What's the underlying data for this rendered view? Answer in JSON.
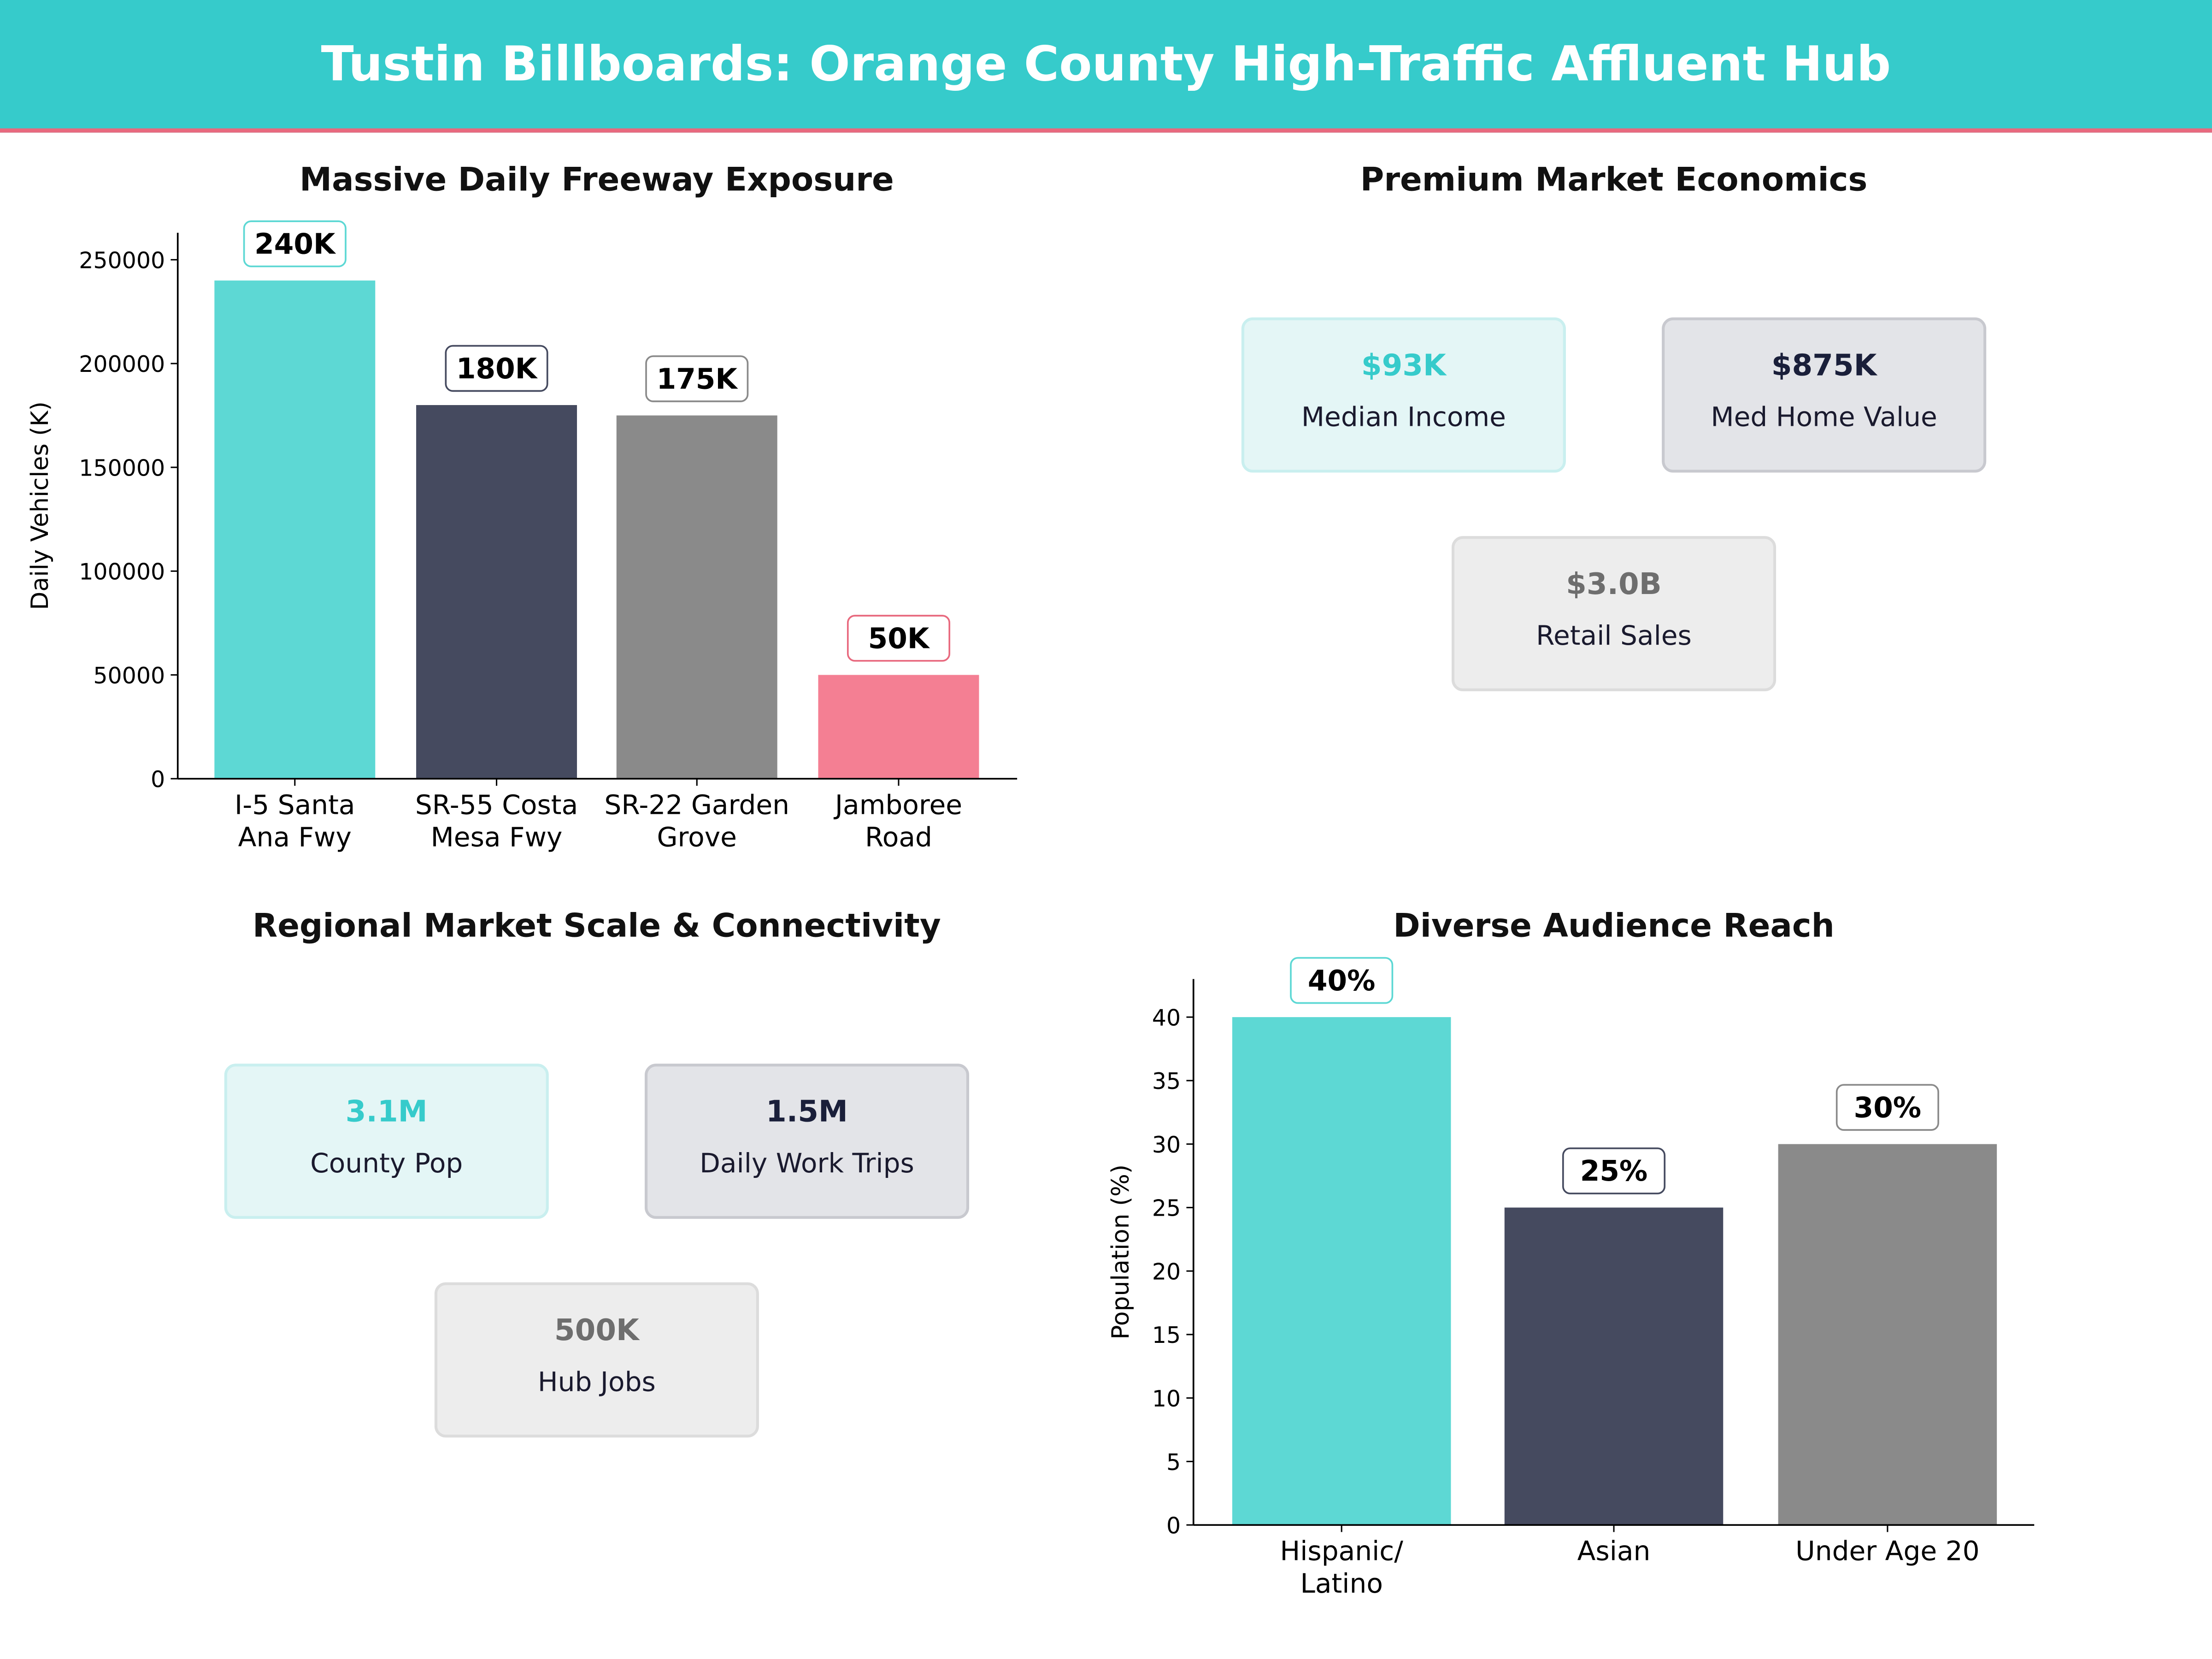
{
  "header": {
    "title": "Tustin Billboards: Orange County High-Traffic Affluent Hub"
  },
  "colors": {
    "teal": "#5DD8D4",
    "navy": "#454A5F",
    "gray": "#8A8A8A",
    "pink": "#F47F93"
  },
  "panels": {
    "economics": {
      "title": "Premium Market Economics",
      "cards": [
        {
          "value": "$93K",
          "label": "Median Income",
          "color": "#36CBCB",
          "bg": "#E4F6F6",
          "border": "#C9EFEF"
        },
        {
          "value": "$875K",
          "label": "Med Home Value",
          "color": "#1a1f3a",
          "bg": "#E3E4E8",
          "border": "#C8C9CF"
        },
        {
          "value": "$3.0B",
          "label": "Retail Sales",
          "color": "#6e6e6e",
          "bg": "#EDEDED",
          "border": "#DCDCDC"
        }
      ]
    },
    "regional": {
      "title": "Regional Market Scale & Connectivity",
      "cards": [
        {
          "value": "3.1M",
          "label": "County Pop",
          "color": "#36CBCB",
          "bg": "#E4F6F6",
          "border": "#C9EFEF"
        },
        {
          "value": "1.5M",
          "label": "Daily Work Trips",
          "color": "#1a1f3a",
          "bg": "#E3E4E8",
          "border": "#C8C9CF"
        },
        {
          "value": "500K",
          "label": "Hub Jobs",
          "color": "#6e6e6e",
          "bg": "#EDEDED",
          "border": "#DCDCDC"
        }
      ]
    }
  },
  "chart_data": [
    {
      "type": "bar",
      "title": "Massive Daily Freeway Exposure",
      "xlabel": "",
      "ylabel": "Daily Vehicles (K)",
      "categories": [
        [
          "I-5 Santa",
          "Ana Fwy"
        ],
        [
          "SR-55 Costa",
          "Mesa Fwy"
        ],
        [
          "SR-22 Garden",
          "Grove"
        ],
        [
          "Jamboree",
          "Road"
        ]
      ],
      "values": [
        240000,
        180000,
        175000,
        50000
      ],
      "data_labels": [
        "240K",
        "180K",
        "175K",
        "50K"
      ],
      "bar_colors": [
        "#5DD8D4",
        "#454A5F",
        "#8A8A8A",
        "#F47F93"
      ],
      "label_borders": [
        "#5DD8D4",
        "#454A5F",
        "#8A8A8A",
        "#E8697E"
      ],
      "yticks": [
        0,
        50000,
        100000,
        150000,
        200000,
        250000
      ],
      "ylim": [
        0,
        263000
      ],
      "grid": false
    },
    {
      "type": "bar",
      "title": "Diverse Audience Reach",
      "xlabel": "",
      "ylabel": "Population (%)",
      "categories": [
        [
          "Hispanic/",
          "Latino"
        ],
        [
          "Asian"
        ],
        [
          "Under Age 20"
        ]
      ],
      "values": [
        40,
        25,
        30
      ],
      "data_labels": [
        "40%",
        "25%",
        "30%"
      ],
      "bar_colors": [
        "#5DD8D4",
        "#454A5F",
        "#8A8A8A"
      ],
      "label_borders": [
        "#5DD8D4",
        "#454A5F",
        "#8A8A8A"
      ],
      "yticks": [
        0,
        5,
        10,
        15,
        20,
        25,
        30,
        35,
        40
      ],
      "ylim": [
        0,
        43
      ],
      "grid": false
    }
  ]
}
